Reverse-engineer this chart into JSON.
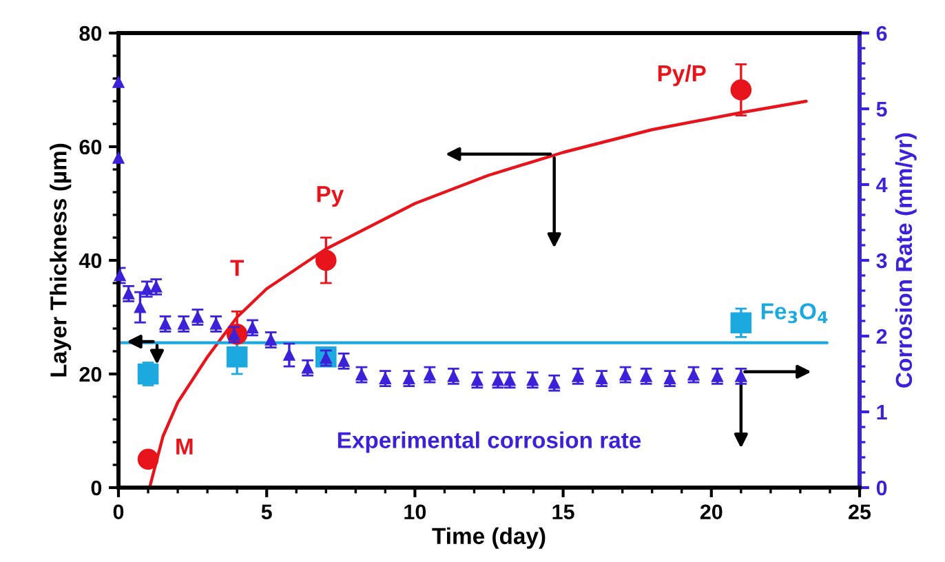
{
  "chart_data": {
    "type": "scatter",
    "xlabel": "Time (day)",
    "ylabel": "Layer Thickness (µm)",
    "y2label": "Corrosion Rate (mm/yr)",
    "xlim": [
      0,
      25
    ],
    "xticks": [
      0,
      5,
      10,
      15,
      20,
      25
    ],
    "ylim": [
      0,
      80
    ],
    "yticks": [
      0,
      20,
      40,
      60,
      80
    ],
    "y2lim": [
      0,
      6
    ],
    "y2ticks": [
      0,
      1,
      2,
      3,
      4,
      5,
      6
    ],
    "grid": false,
    "series": [
      {
        "type": "line",
        "color": "#e8141b",
        "x": [
          1.05,
          1.5,
          2,
          3,
          4,
          5,
          7,
          10,
          12.5,
          15,
          18,
          21,
          23.2
        ],
        "values": [
          0,
          9,
          15,
          23,
          30,
          35,
          42,
          50,
          55,
          59,
          63,
          66,
          68
        ],
        "marker": "none"
      },
      {
        "color": "#e8141b",
        "x": [
          1,
          4,
          7,
          21
        ],
        "values": [
          5,
          27,
          40,
          70
        ],
        "errors": [
          null,
          4,
          4,
          4.5
        ],
        "marker": "circle"
      },
      {
        "type": "line",
        "color": "#1ba9e0",
        "x": [
          0,
          23.9
        ],
        "values": [
          25.5,
          25.5
        ],
        "marker": "none"
      },
      {
        "color": "#1ba9e0",
        "x": [
          1,
          4,
          7,
          21
        ],
        "values": [
          20,
          23,
          23,
          29
        ],
        "errors": [
          2,
          3,
          1.5,
          2.5
        ],
        "marker": "square"
      },
      {
        "name": "Experimental corrosion rate",
        "axis": "y2",
        "color": "#3b22d8",
        "marker": "triangle",
        "x": [
          0,
          0,
          0.05,
          0.34,
          0.73,
          0.96,
          1.27,
          1.58,
          2.2,
          2.67,
          3.29,
          3.9,
          4.52,
          5.14,
          5.76,
          6.38,
          7.0,
          7.6,
          8.2,
          9.0,
          9.8,
          10.5,
          11.3,
          12.1,
          12.8,
          13.2,
          13.97,
          14.7,
          15.5,
          16.3,
          17.1,
          17.8,
          18.6,
          19.4,
          20.2,
          21.0
        ],
        "values": [
          5.35,
          4.35,
          2.8,
          2.56,
          2.38,
          2.62,
          2.65,
          2.16,
          2.16,
          2.25,
          2.16,
          2.02,
          2.11,
          1.95,
          1.75,
          1.58,
          1.71,
          1.67,
          1.49,
          1.44,
          1.44,
          1.49,
          1.47,
          1.42,
          1.42,
          1.42,
          1.42,
          1.38,
          1.47,
          1.44,
          1.49,
          1.47,
          1.44,
          1.49,
          1.47,
          1.47
        ],
        "errors": [
          null,
          null,
          0.1,
          0.1,
          0.2,
          0.1,
          0.1,
          0.1,
          0.1,
          0.1,
          0.1,
          0.1,
          0.1,
          0.1,
          0.15,
          0.1,
          0.1,
          0.1,
          0.1,
          0.1,
          0.1,
          0.1,
          0.1,
          0.1,
          0.1,
          0.1,
          0.1,
          0.1,
          0.1,
          0.1,
          0.1,
          0.1,
          0.1,
          0.1,
          0.1,
          0.1
        ]
      }
    ],
    "annotations": [
      {
        "text": "M",
        "x": 1,
        "y": 5
      },
      {
        "text": "T",
        "x": 4,
        "y": 27
      },
      {
        "text": "Py",
        "x": 7,
        "y": 40
      },
      {
        "text": "Py/P",
        "x": 21,
        "y": 70
      },
      {
        "text": "Fe$_{3}$O$_{4}$",
        "x": 21,
        "y": 29
      }
    ]
  }
}
